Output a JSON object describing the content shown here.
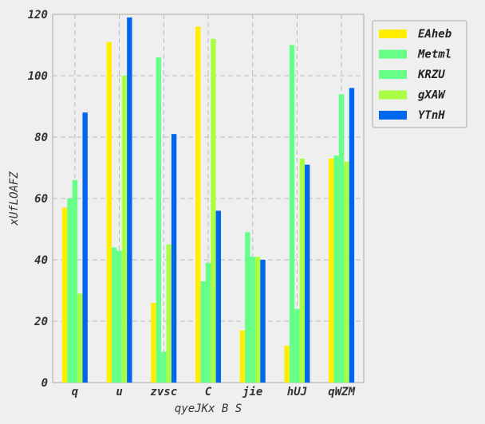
{
  "chart_data": {
    "type": "bar",
    "title": "",
    "xlabel": "qyeJKx B S",
    "ylabel": "xUfLOAFZ",
    "categories": [
      "q",
      "u",
      "zvsc",
      "C",
      "jie",
      "hUJ",
      "qWZM"
    ],
    "ylim": [
      0,
      120
    ],
    "yticks": [
      0,
      20,
      40,
      60,
      80,
      100,
      120
    ],
    "grid": true,
    "legend_position": "top-right",
    "series": [
      {
        "name": "EAheb",
        "color": "#ffee00",
        "values": [
          57,
          111,
          26,
          116,
          17,
          12,
          73
        ]
      },
      {
        "name": "Metml",
        "color": "#66ff88",
        "values": [
          60,
          44,
          106,
          33,
          49,
          110,
          74
        ]
      },
      {
        "name": "KRZU",
        "color": "#66ff88",
        "values": [
          66,
          43,
          10,
          39,
          41,
          24,
          94
        ]
      },
      {
        "name": "gXAW",
        "color": "#aaff44",
        "values": [
          29,
          100,
          45,
          112,
          41,
          73,
          72
        ]
      },
      {
        "name": "YTnH",
        "color": "#0066ee",
        "values": [
          88,
          119,
          81,
          56,
          40,
          71,
          96
        ]
      }
    ]
  }
}
